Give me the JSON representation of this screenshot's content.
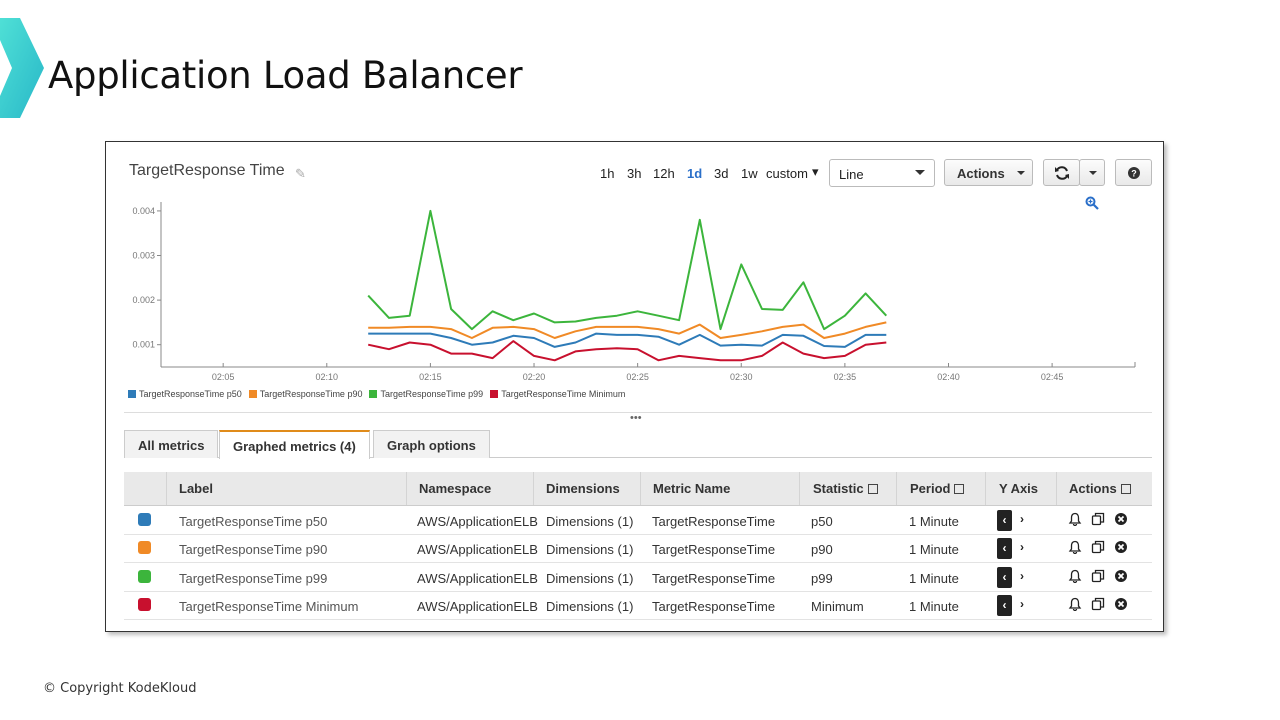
{
  "slide": {
    "title": "Application Load Balancer",
    "copyright": "© Copyright KodeKloud"
  },
  "graph": {
    "title": "TargetResponse Time",
    "edit_icon": "pencil-icon",
    "ranges": [
      "1h",
      "3h",
      "12h",
      "1d",
      "3d",
      "1w",
      "custom"
    ],
    "active_range": "1d",
    "chart_type_value": "Line",
    "actions_label": "Actions",
    "refresh_icon": "refresh-icon",
    "help_icon": "help-icon",
    "zoom_icon": "magnifier-icon"
  },
  "chart_data": {
    "type": "line",
    "x": [
      "02:12",
      "02:13",
      "02:14",
      "02:15",
      "02:16",
      "02:17",
      "02:18",
      "02:19",
      "02:20",
      "02:21",
      "02:22",
      "02:23",
      "02:24",
      "02:25",
      "02:26",
      "02:27",
      "02:28",
      "02:29",
      "02:30",
      "02:31",
      "02:32",
      "02:33",
      "02:34",
      "02:35",
      "02:36",
      "02:37"
    ],
    "x_ticks": [
      "02:05",
      "02:10",
      "02:15",
      "02:20",
      "02:25",
      "02:30",
      "02:35",
      "02:40",
      "02:45"
    ],
    "y_ticks": [
      "0.001",
      "0.002",
      "0.003",
      "0.004"
    ],
    "ylim": [
      0.0005,
      0.0042
    ],
    "xlim": [
      "02:02",
      "02:49"
    ],
    "series": [
      {
        "name": "TargetResponseTime p50",
        "color": "#2e7bb8",
        "values": [
          0.00125,
          0.00125,
          0.00125,
          0.00125,
          0.00115,
          0.001,
          0.00105,
          0.0012,
          0.00115,
          0.00095,
          0.00105,
          0.00125,
          0.00122,
          0.00122,
          0.00118,
          0.001,
          0.00122,
          0.00098,
          0.001,
          0.00098,
          0.00122,
          0.0012,
          0.00097,
          0.00095,
          0.00122,
          0.00122
        ]
      },
      {
        "name": "TargetResponseTime p90",
        "color": "#f08a26",
        "values": [
          0.00138,
          0.00138,
          0.0014,
          0.0014,
          0.00135,
          0.00115,
          0.00138,
          0.0014,
          0.00135,
          0.00115,
          0.0013,
          0.0014,
          0.0014,
          0.0014,
          0.00135,
          0.00125,
          0.00145,
          0.00115,
          0.00122,
          0.0013,
          0.0014,
          0.00145,
          0.00115,
          0.00125,
          0.0014,
          0.0015
        ]
      },
      {
        "name": "TargetResponseTime p99",
        "color": "#3cb53c",
        "values": [
          0.0021,
          0.0016,
          0.00165,
          0.004,
          0.0018,
          0.00135,
          0.00175,
          0.00155,
          0.0017,
          0.0015,
          0.00152,
          0.0016,
          0.00165,
          0.00175,
          0.00165,
          0.00155,
          0.0038,
          0.00135,
          0.0028,
          0.0018,
          0.00178,
          0.0024,
          0.00135,
          0.00165,
          0.00215,
          0.00165
        ]
      },
      {
        "name": "TargetResponseTime Minimum",
        "color": "#c8102e",
        "values": [
          0.001,
          0.0009,
          0.00105,
          0.001,
          0.0008,
          0.0008,
          0.0007,
          0.00108,
          0.00075,
          0.00065,
          0.00085,
          0.0009,
          0.00092,
          0.0009,
          0.00065,
          0.00075,
          0.0007,
          0.00065,
          0.00065,
          0.00075,
          0.00105,
          0.0008,
          0.0007,
          0.00075,
          0.001,
          0.00105
        ]
      }
    ],
    "grid": false,
    "legend_position": "bottom-left"
  },
  "tabs": [
    {
      "label": "All metrics"
    },
    {
      "label": "Graphed metrics (4)"
    },
    {
      "label": "Graph options"
    }
  ],
  "table": {
    "headers": [
      "Label",
      "Namespace",
      "Dimensions",
      "Metric Name",
      "Statistic",
      "Period",
      "Y Axis",
      "Actions"
    ],
    "rows": [
      {
        "color": "#2e7bb8",
        "label": "TargetResponseTime p50",
        "namespace": "AWS/ApplicationELB",
        "dimensions": "Dimensions (1)",
        "metric": "TargetResponseTime",
        "statistic": "p50",
        "period": "1 Minute"
      },
      {
        "color": "#f08a26",
        "label": "TargetResponseTime p90",
        "namespace": "AWS/ApplicationELB",
        "dimensions": "Dimensions (1)",
        "metric": "TargetResponseTime",
        "statistic": "p90",
        "period": "1 Minute"
      },
      {
        "color": "#3cb53c",
        "label": "TargetResponseTime p99",
        "namespace": "AWS/ApplicationELB",
        "dimensions": "Dimensions (1)",
        "metric": "TargetResponseTime",
        "statistic": "p99",
        "period": "1 Minute"
      },
      {
        "color": "#c8102e",
        "label": "TargetResponseTime Minimum",
        "namespace": "AWS/ApplicationELB",
        "dimensions": "Dimensions (1)",
        "metric": "TargetResponseTime",
        "statistic": "Minimum",
        "period": "1 Minute"
      }
    ],
    "row_icons": [
      "chevron-left-icon",
      "chevron-right-icon",
      "bell-icon",
      "copy-icon",
      "remove-icon"
    ]
  }
}
